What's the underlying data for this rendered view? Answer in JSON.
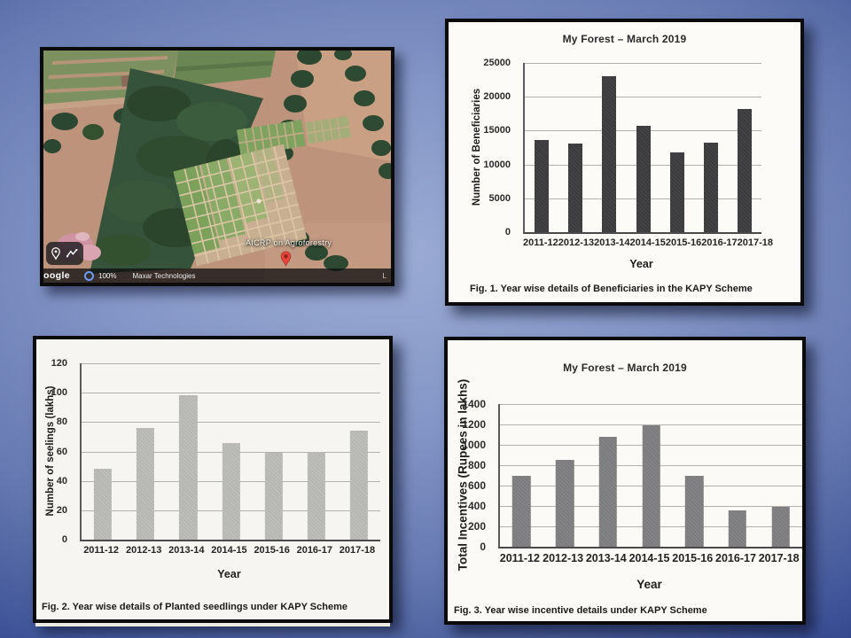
{
  "slide": {
    "background_colors": {
      "center": "#93a5cf",
      "edge": "#0c1b50"
    },
    "panel_border_color": "#0b0b0c"
  },
  "satellite": {
    "map_label": "AICRP on Agroforestry",
    "logo_text": "oogle",
    "zoom_text": "100%",
    "attribution": "Maxar Technologies",
    "corner_mark": "L",
    "pin_color": "#e5453a"
  },
  "chart_data": [
    {
      "type": "bar",
      "title": "My Forest – March 2019",
      "categories": [
        "2011-12",
        "2012-13",
        "2013-14",
        "2014-15",
        "2015-16",
        "2016-17",
        "2017-18"
      ],
      "values": [
        13600,
        13100,
        23000,
        15700,
        11800,
        13200,
        18250
      ],
      "xlabel": "Year",
      "ylabel": "Number of Beneficiaries",
      "ylim": [
        0,
        25000
      ],
      "ytick_step": 5000,
      "grid": true,
      "legend": false,
      "bar_color": "#3d3d3f",
      "caption": "Fig. 1. Year wise details of Beneficiaries in the KAPY Scheme"
    },
    {
      "type": "bar",
      "title": "",
      "categories": [
        "2011-12",
        "2012-13",
        "2013-14",
        "2014-15",
        "2015-16",
        "2016-17",
        "2017-18"
      ],
      "values": [
        48,
        76,
        98,
        66,
        59,
        60,
        74
      ],
      "xlabel": "Year",
      "ylabel": "Number of seelings (lakhs)",
      "ylim": [
        0,
        120
      ],
      "ytick_step": 20,
      "grid": true,
      "legend": false,
      "bar_color": "#bdbdba",
      "caption": "Fig. 2. Year wise details of Planted seedlings under KAPY Scheme"
    },
    {
      "type": "bar",
      "title": "My Forest – March 2019",
      "categories": [
        "2011-12",
        "2012-13",
        "2013-14",
        "2014-15",
        "2015-16",
        "2016-17",
        "2017-18"
      ],
      "values": [
        700,
        850,
        1080,
        1190,
        700,
        355,
        390
      ],
      "xlabel": "Year",
      "ylabel": "Total Incentives (Rupees in lakhs)",
      "ylim": [
        0,
        1400
      ],
      "ytick_step": 200,
      "grid": true,
      "legend": false,
      "bar_color": "#818184",
      "caption": "Fig. 3. Year wise incentive details under KAPY Scheme"
    }
  ]
}
